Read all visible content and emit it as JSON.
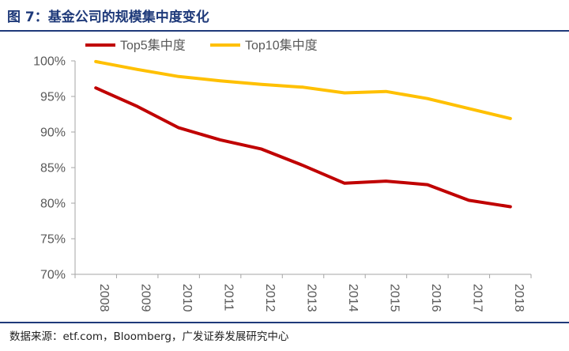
{
  "header": {
    "figure_title": "图 7：基金公司的规模集中度变化"
  },
  "footer": {
    "source": "数据来源：etf.com，Bloomberg，广发证券发展研究中心"
  },
  "colors": {
    "title_blue": "#1f3a7a",
    "top5": "#c00000",
    "top10": "#ffc000",
    "axis": "#a6a6a6",
    "text": "#595959"
  },
  "chart_data": {
    "type": "line",
    "title": "",
    "xlabel": "",
    "ylabel": "",
    "categories": [
      "2008",
      "2009",
      "2010",
      "2011",
      "2012",
      "2013",
      "2014",
      "2015",
      "2016",
      "2017",
      "2018"
    ],
    "ylim": [
      70,
      100
    ],
    "yticks": [
      70,
      75,
      80,
      85,
      90,
      95,
      100
    ],
    "ytick_labels": [
      "70%",
      "75%",
      "80%",
      "85%",
      "90%",
      "95%",
      "100%"
    ],
    "grid": false,
    "legend_position": "top-left",
    "series": [
      {
        "name": "Top5集中度",
        "color": "#c00000",
        "values": [
          96.2,
          93.6,
          90.6,
          88.9,
          87.6,
          85.3,
          82.8,
          83.1,
          82.6,
          80.4,
          79.5
        ]
      },
      {
        "name": "Top10集中度",
        "color": "#ffc000",
        "values": [
          99.9,
          98.8,
          97.8,
          97.2,
          96.7,
          96.3,
          95.5,
          95.7,
          94.7,
          93.3,
          91.9
        ]
      }
    ]
  }
}
